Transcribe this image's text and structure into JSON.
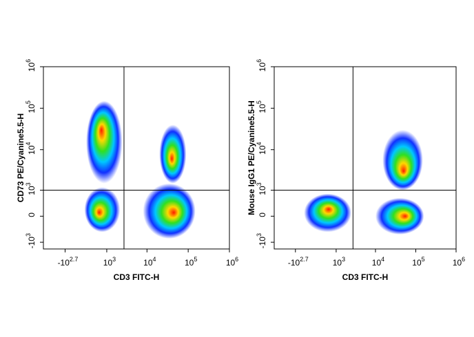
{
  "chart_data": [
    {
      "type": "density",
      "xlabel": "CD3 FITC-H",
      "ylabel": "CD73 PE/Cyanine5.5-H",
      "scale": "biexponential",
      "xlim": [
        -2000,
        1000000
      ],
      "ylim": [
        -1500,
        1000000
      ],
      "xticks": [
        {
          "value": -501,
          "label": "-10",
          "exponent": "2.7"
        },
        {
          "value": 1000,
          "label": "10",
          "exponent": "3"
        },
        {
          "value": 10000,
          "label": "10",
          "exponent": "4"
        },
        {
          "value": 100000,
          "label": "10",
          "exponent": "5"
        },
        {
          "value": 1000000,
          "label": "10",
          "exponent": "6"
        }
      ],
      "yticks": [
        {
          "value": -1000,
          "label": "-10",
          "exponent": "3"
        },
        0,
        {
          "value": 1000,
          "label": "10",
          "exponent": "3"
        },
        {
          "value": 10000,
          "label": "10",
          "exponent": "4"
        },
        {
          "value": 100000,
          "label": "10",
          "exponent": "5"
        },
        {
          "value": 1000000,
          "label": "10",
          "exponent": "6"
        }
      ],
      "gate": {
        "x": 2750,
        "y": 1000
      },
      "colormap": [
        "#ff1a00",
        "#ffd800",
        "#30e020",
        "#00c8ff",
        "#1030ff"
      ],
      "populations": [
        {
          "x": 700,
          "y": 30000,
          "xrange": [
            150,
            2500
          ],
          "yrange": [
            1500,
            150000
          ]
        },
        {
          "x": 600,
          "y": 100,
          "xrange": [
            100,
            2200
          ],
          "yrange": [
            -500,
            1200
          ]
        },
        {
          "x": 45000,
          "y": 100,
          "xrange": [
            8000,
            150000
          ],
          "yrange": [
            -800,
            1500
          ]
        },
        {
          "x": 40000,
          "y": 6000,
          "xrange": [
            20000,
            90000
          ],
          "yrange": [
            1500,
            40000
          ]
        }
      ]
    },
    {
      "type": "density",
      "xlabel": "CD3 FITC-H",
      "ylabel": "Mouse IgG1 PE/Cyanine5.5-H",
      "scale": "biexponential",
      "xlim": [
        -2000,
        1000000
      ],
      "ylim": [
        -1500,
        1000000
      ],
      "xticks": [
        {
          "value": -501,
          "label": "-10",
          "exponent": "2.7"
        },
        {
          "value": 1000,
          "label": "10",
          "exponent": "3"
        },
        {
          "value": 10000,
          "label": "10",
          "exponent": "4"
        },
        {
          "value": 100000,
          "label": "10",
          "exponent": "5"
        },
        {
          "value": 1000000,
          "label": "10",
          "exponent": "6"
        }
      ],
      "yticks": [
        {
          "value": -1000,
          "label": "-10",
          "exponent": "3"
        },
        0,
        {
          "value": 1000,
          "label": "10",
          "exponent": "3"
        },
        {
          "value": 10000,
          "label": "10",
          "exponent": "4"
        },
        {
          "value": 100000,
          "label": "10",
          "exponent": "5"
        },
        {
          "value": 1000000,
          "label": "10",
          "exponent": "6"
        }
      ],
      "gate": {
        "x": 2750,
        "y": 1000
      },
      "colormap": [
        "#ff1a00",
        "#ffd800",
        "#30e020",
        "#00c8ff",
        "#1030ff"
      ],
      "populations": [
        {
          "x": 600,
          "y": 200,
          "xrange": [
            -200,
            2500
          ],
          "yrange": [
            -500,
            800
          ]
        },
        {
          "x": 55000,
          "y": 0,
          "xrange": [
            10000,
            160000
          ],
          "yrange": [
            -600,
            600
          ]
        },
        {
          "x": 50000,
          "y": 3000,
          "xrange": [
            15000,
            150000
          ],
          "yrange": [
            1000,
            30000
          ]
        }
      ]
    }
  ]
}
